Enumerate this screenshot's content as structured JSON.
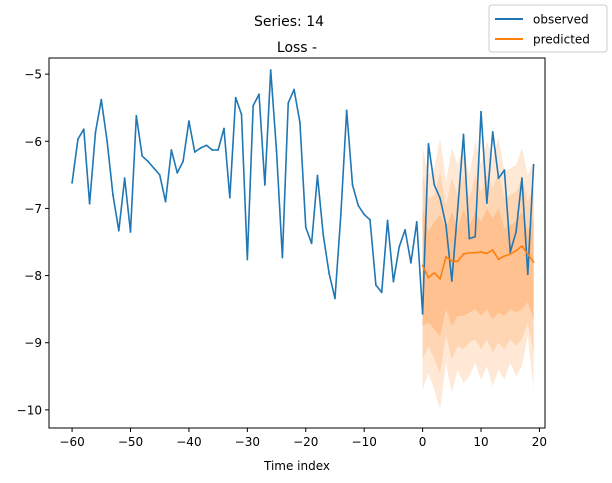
{
  "chart_data": {
    "type": "line",
    "suptitle": "Series: 14",
    "title": "Loss -",
    "xlabel": "Time index",
    "ylabel": "",
    "xlim": [
      -63.95,
      20.95
    ],
    "ylim": [
      -10.27,
      -4.76
    ],
    "xticks": [
      -60,
      -50,
      -40,
      -30,
      -20,
      -10,
      0,
      10,
      20
    ],
    "yticks": [
      -10,
      -9,
      -8,
      -7,
      -6,
      -5
    ],
    "xtick_labels": [
      "−60",
      "−50",
      "−40",
      "−30",
      "−20",
      "−10",
      "0",
      "10",
      "20"
    ],
    "ytick_labels": [
      "−10",
      "−9",
      "−8",
      "−7",
      "−6",
      "−5"
    ],
    "grid": false,
    "legend_position": "top-right",
    "legend": [
      "observed",
      "predicted"
    ],
    "colors": {
      "observed": "#1f77b4",
      "predicted": "#ff7f0e",
      "band_outer": "#ffe9d6",
      "band_mid": "#ffd6b3",
      "band_inner": "#ffc190"
    },
    "series": [
      {
        "name": "observed",
        "x": [
          -60,
          -59,
          -58,
          -57,
          -56,
          -55,
          -54,
          -53,
          -52,
          -51,
          -50,
          -49,
          -48,
          -47,
          -46,
          -45,
          -44,
          -43,
          -42,
          -41,
          -40,
          -39,
          -38,
          -37,
          -36,
          -35,
          -34,
          -33,
          -32,
          -31,
          -30,
          -29,
          -28,
          -27,
          -26,
          -25,
          -24,
          -23,
          -22,
          -21,
          -20,
          -19,
          -18,
          -17,
          -16,
          -15,
          -14,
          -13,
          -12,
          -11,
          -10,
          -9,
          -8,
          -7,
          -6,
          -5,
          -4,
          -3,
          -2,
          -1,
          0,
          1,
          2,
          3,
          4,
          5,
          6,
          7,
          8,
          9,
          10,
          11,
          12,
          13,
          14,
          15,
          16,
          17,
          18,
          19
        ],
        "y": [
          -6.62,
          -5.97,
          -5.82,
          -6.93,
          -5.87,
          -5.38,
          -6.0,
          -6.8,
          -7.33,
          -6.55,
          -7.35,
          -5.62,
          -6.22,
          -6.3,
          -6.4,
          -6.5,
          -6.9,
          -6.13,
          -6.47,
          -6.3,
          -5.7,
          -6.16,
          -6.1,
          -6.06,
          -6.13,
          -6.13,
          -5.81,
          -6.84,
          -5.35,
          -5.6,
          -7.76,
          -5.47,
          -5.3,
          -6.65,
          -4.94,
          -6.15,
          -7.73,
          -5.43,
          -5.23,
          -5.72,
          -7.28,
          -7.52,
          -6.51,
          -7.4,
          -7.97,
          -8.34,
          -7.1,
          -5.54,
          -6.65,
          -6.96,
          -7.09,
          -7.17,
          -8.14,
          -8.25,
          -7.18,
          -8.09,
          -7.57,
          -7.32,
          -7.81,
          -7.2,
          -8.57,
          -6.04,
          -6.65,
          -6.85,
          -7.25,
          -8.08,
          -7.02,
          -5.9,
          -7.45,
          -7.42,
          -5.56,
          -6.92,
          -5.86,
          -6.55,
          -6.43,
          -7.65,
          -7.35,
          -6.55,
          -7.98,
          -6.35
        ]
      },
      {
        "name": "predicted",
        "x": [
          0,
          1,
          2,
          3,
          4,
          5,
          6,
          7,
          8,
          9,
          10,
          11,
          12,
          13,
          14,
          15,
          16,
          17,
          18,
          19
        ],
        "y": [
          -7.85,
          -8.03,
          -7.96,
          -8.05,
          -7.72,
          -7.78,
          -7.79,
          -7.68,
          -7.66,
          -7.66,
          -7.65,
          -7.67,
          -7.62,
          -7.76,
          -7.71,
          -7.68,
          -7.63,
          -7.56,
          -7.68,
          -7.8
        ],
        "bands": {
          "outer_low": [
            -9.7,
            -9.45,
            -9.7,
            -10.0,
            -9.3,
            -9.75,
            -9.4,
            -9.6,
            -9.5,
            -9.3,
            -9.55,
            -9.35,
            -9.65,
            -9.4,
            -9.55,
            -9.3,
            -9.5,
            -9.35,
            -8.9,
            -9.7
          ],
          "outer_high": [
            -6.1,
            -6.5,
            -6.4,
            -5.95,
            -6.6,
            -6.1,
            -6.35,
            -6.05,
            -6.5,
            -6.0,
            -6.35,
            -6.0,
            -6.25,
            -5.95,
            -6.45,
            -6.4,
            -6.35,
            -6.1,
            -6.5,
            -6.3
          ],
          "mid_low": [
            -9.25,
            -9.05,
            -9.25,
            -9.45,
            -8.9,
            -9.25,
            -9.05,
            -9.1,
            -9.0,
            -8.95,
            -9.1,
            -8.95,
            -9.15,
            -9.0,
            -9.1,
            -8.95,
            -9.05,
            -8.95,
            -8.7,
            -9.15
          ],
          "mid_high": [
            -6.5,
            -6.85,
            -6.8,
            -6.45,
            -6.95,
            -6.55,
            -6.8,
            -6.5,
            -6.85,
            -6.5,
            -6.75,
            -6.5,
            -6.7,
            -6.45,
            -6.85,
            -6.8,
            -6.75,
            -6.55,
            -6.9,
            -6.7
          ],
          "inner_low": [
            -8.75,
            -8.7,
            -8.8,
            -8.9,
            -8.5,
            -8.75,
            -8.6,
            -8.6,
            -8.55,
            -8.5,
            -8.6,
            -8.5,
            -8.65,
            -8.55,
            -8.6,
            -8.5,
            -8.55,
            -8.5,
            -8.4,
            -8.65
          ],
          "inner_high": [
            -7.0,
            -7.35,
            -7.2,
            -7.1,
            -7.3,
            -7.05,
            -7.3,
            -7.0,
            -7.25,
            -7.05,
            -7.2,
            -7.0,
            -7.15,
            -7.0,
            -7.3,
            -7.25,
            -7.2,
            -7.05,
            -7.35,
            -7.15
          ]
        }
      }
    ]
  }
}
